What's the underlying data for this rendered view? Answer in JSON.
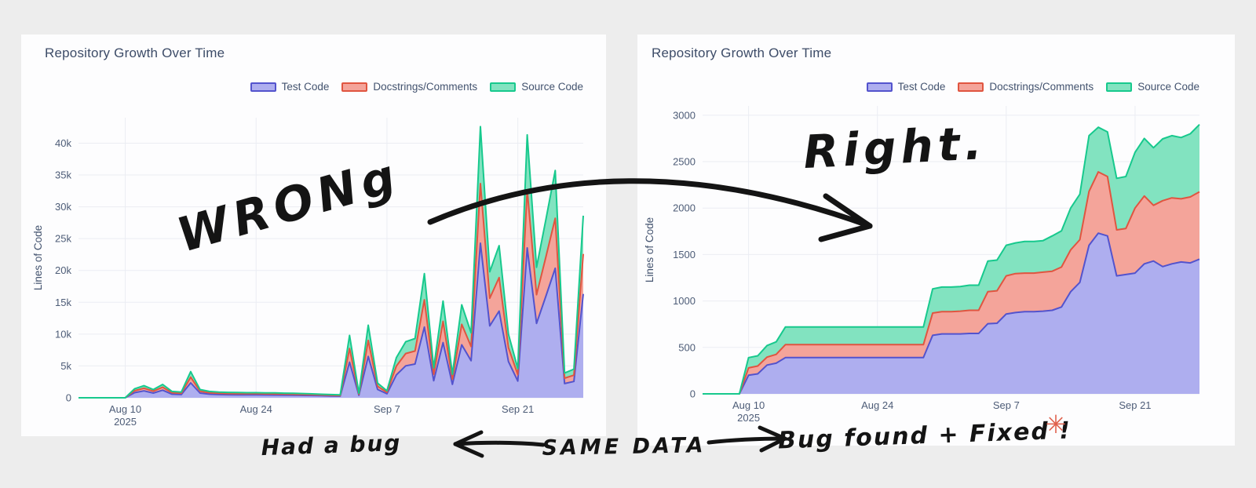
{
  "page": {
    "background": "#ededed",
    "card_background": "#fdfdfe"
  },
  "chart_data": [
    {
      "type": "area",
      "stacked": true,
      "panel": "left (buggy version)",
      "title": "Repository Growth Over Time",
      "ylabel": "Lines of Code",
      "x_unit": "daily snapshots, Aug 5 - Sep 28, 2025",
      "grid": true,
      "legend_position": "top-right",
      "ylim": [
        0,
        44000
      ],
      "yticks": [
        {
          "v": 0,
          "label": "0"
        },
        {
          "v": 5000,
          "label": "5k"
        },
        {
          "v": 10000,
          "label": "10k"
        },
        {
          "v": 15000,
          "label": "15k"
        },
        {
          "v": 20000,
          "label": "20k"
        },
        {
          "v": 25000,
          "label": "25k"
        },
        {
          "v": 30000,
          "label": "30k"
        },
        {
          "v": 35000,
          "label": "35k"
        },
        {
          "v": 40000,
          "label": "40k"
        }
      ],
      "xticks": [
        {
          "i": 5,
          "label": "Aug 10",
          "sub": "2025"
        },
        {
          "i": 19,
          "label": "Aug 24"
        },
        {
          "i": 33,
          "label": "Sep 7"
        },
        {
          "i": 47,
          "label": "Sep 21"
        }
      ],
      "series": [
        {
          "name": "Test Code",
          "fill": "#aeaeef",
          "line": "#5353cd",
          "values": [
            0,
            0,
            0,
            0,
            0,
            0,
            800,
            1080,
            740,
            1200,
            570,
            510,
            2340,
            740,
            570,
            510,
            480,
            470,
            460,
            460,
            445,
            435,
            415,
            400,
            375,
            355,
            320,
            285,
            255,
            5590,
            400,
            6500,
            1310,
            625,
            3590,
            5015,
            5300,
            11100,
            2680,
            8660,
            2110,
            8320,
            5815,
            24280,
            11290,
            13620,
            5700,
            2620,
            23540,
            11685,
            15960,
            20350,
            2225,
            2565,
            16300
          ]
        },
        {
          "name": "Docstrings/Comments",
          "fill": "#f4a49a",
          "line": "#e05540",
          "values": [
            0,
            0,
            0,
            0,
            0,
            0,
            310,
            420,
            290,
            460,
            220,
            200,
            900,
            290,
            220,
            200,
            190,
            180,
            175,
            175,
            170,
            165,
            160,
            155,
            145,
            135,
            125,
            110,
            100,
            2150,
            155,
            2510,
            505,
            240,
            1385,
            1935,
            2045,
            4290,
            1035,
            3345,
            815,
            3210,
            2245,
            9370,
            4355,
            5260,
            2200,
            1010,
            9085,
            4510,
            6160,
            7855,
            855,
            990,
            6290
          ]
        },
        {
          "name": "Source Code",
          "fill": "#82e3c0",
          "line": "#17c98d",
          "values": [
            0,
            0,
            0,
            0,
            0,
            0,
            290,
            400,
            270,
            440,
            210,
            190,
            860,
            270,
            210,
            190,
            180,
            170,
            165,
            165,
            165,
            160,
            155,
            145,
            140,
            130,
            115,
            105,
            95,
            2060,
            145,
            2390,
            485,
            235,
            1325,
            1850,
            1955,
            4110,
            985,
            3195,
            775,
            3070,
            2140,
            8950,
            4155,
            5020,
            2100,
            970,
            8675,
            4305,
            5880,
            7495,
            820,
            945,
            6010
          ]
        }
      ]
    },
    {
      "type": "area",
      "stacked": true,
      "panel": "right (corrected version)",
      "title": "Repository Growth Over Time",
      "ylabel": "Lines of Code",
      "x_unit": "daily snapshots, Aug 5 - Sep 28, 2025",
      "grid": true,
      "legend_position": "top-right",
      "ylim": [
        0,
        3100
      ],
      "yticks": [
        {
          "v": 0,
          "label": "0"
        },
        {
          "v": 500,
          "label": "500"
        },
        {
          "v": 1000,
          "label": "1000"
        },
        {
          "v": 1500,
          "label": "1500"
        },
        {
          "v": 2000,
          "label": "2000"
        },
        {
          "v": 2500,
          "label": "2500"
        },
        {
          "v": 3000,
          "label": "3000"
        }
      ],
      "xticks": [
        {
          "i": 5,
          "label": "Aug 10",
          "sub": "2025"
        },
        {
          "i": 19,
          "label": "Aug 24"
        },
        {
          "i": 33,
          "label": "Sep 7"
        },
        {
          "i": 47,
          "label": "Sep 21"
        }
      ],
      "series": [
        {
          "name": "Test Code",
          "fill": "#aeaeef",
          "line": "#5353cd",
          "values": [
            0,
            0,
            0,
            0,
            0,
            200,
            215,
            310,
            330,
            390,
            390,
            390,
            390,
            390,
            390,
            390,
            390,
            390,
            390,
            390,
            390,
            390,
            390,
            390,
            390,
            630,
            645,
            645,
            645,
            650,
            650,
            755,
            760,
            860,
            875,
            885,
            885,
            890,
            900,
            935,
            1100,
            1200,
            1600,
            1730,
            1700,
            1270,
            1285,
            1300,
            1400,
            1430,
            1370,
            1400,
            1420,
            1410,
            1450
          ]
        },
        {
          "name": "Docstrings/Comments",
          "fill": "#f4a49a",
          "line": "#e05540",
          "values": [
            0,
            0,
            0,
            0,
            0,
            80,
            85,
            85,
            95,
            140,
            140,
            140,
            140,
            140,
            140,
            140,
            140,
            140,
            140,
            140,
            140,
            140,
            140,
            140,
            140,
            240,
            240,
            240,
            245,
            250,
            250,
            345,
            350,
            410,
            420,
            415,
            415,
            420,
            420,
            430,
            450,
            460,
            580,
            660,
            640,
            495,
            495,
            700,
            730,
            600,
            710,
            710,
            680,
            710,
            725
          ]
        },
        {
          "name": "Source Code",
          "fill": "#82e3c0",
          "line": "#17c98d",
          "values": [
            0,
            0,
            0,
            0,
            0,
            110,
            110,
            125,
            135,
            190,
            190,
            190,
            190,
            190,
            190,
            190,
            190,
            190,
            190,
            190,
            190,
            190,
            190,
            190,
            190,
            260,
            265,
            265,
            265,
            270,
            270,
            330,
            330,
            330,
            330,
            340,
            340,
            340,
            380,
            390,
            450,
            490,
            600,
            480,
            480,
            555,
            560,
            600,
            620,
            620,
            665,
            670,
            660,
            680,
            725
          ]
        }
      ]
    }
  ],
  "annotations": {
    "ink_color": "#141414",
    "wrong_label": "WRONg",
    "right_label": "Right.",
    "had_a_bug_label": "Had a bug",
    "same_data_label": "SAME DATA",
    "bug_fixed_label": "Bug found + Fixed !",
    "asterisk_icon": "✳",
    "asterisk_color": "#e0604c"
  }
}
